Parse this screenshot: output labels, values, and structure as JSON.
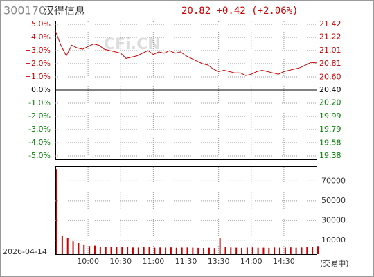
{
  "header": {
    "code": "300170",
    "name": "汉得信息",
    "quote": "20.82 +0.42 (+2.06%)",
    "date": "2026-04-14",
    "status": "(交易中)",
    "watermark": "CFi.CN"
  },
  "chart_data": [
    {
      "type": "line",
      "x": [
        0,
        5,
        10,
        15,
        20,
        25,
        30,
        35,
        40,
        45,
        50,
        55,
        60,
        65,
        70,
        75,
        80,
        85,
        90,
        95,
        100,
        105,
        110,
        115,
        120,
        125,
        130,
        135,
        140,
        145,
        150,
        155,
        160,
        165,
        170,
        175,
        180,
        185,
        190,
        195,
        200,
        205,
        210,
        215,
        220,
        225,
        230,
        235,
        240
      ],
      "series": [
        {
          "color": "#cc0000",
          "values": [
            4.5,
            3.4,
            2.6,
            3.4,
            3.2,
            3.1,
            3.3,
            3.5,
            3.4,
            3.1,
            3.0,
            2.9,
            2.8,
            2.4,
            2.5,
            2.6,
            2.8,
            3.0,
            2.7,
            2.9,
            2.8,
            3.0,
            2.8,
            2.9,
            2.6,
            2.4,
            2.2,
            2.0,
            1.9,
            1.6,
            1.4,
            1.5,
            1.4,
            1.3,
            1.3,
            1.1,
            1.2,
            1.4,
            1.5,
            1.4,
            1.3,
            1.2,
            1.4,
            1.5,
            1.6,
            1.7,
            1.9,
            2.1,
            2.06
          ]
        }
      ],
      "xlim": [
        0,
        240
      ],
      "ylim": [
        -5,
        5
      ],
      "yticks": [
        {
          "value": 5,
          "label": "+5.0%"
        },
        {
          "value": 4,
          "label": "+4.0%"
        },
        {
          "value": 3,
          "label": "+3.0%"
        },
        {
          "value": 2,
          "label": "+2.0%"
        },
        {
          "value": 1,
          "label": "+1.0%"
        },
        {
          "value": 0,
          "label": "0.0%"
        },
        {
          "value": -1,
          "label": "-1.0%"
        },
        {
          "value": -2,
          "label": "-2.0%"
        },
        {
          "value": -3,
          "label": "-3.0%"
        },
        {
          "value": -4,
          "label": "-4.0%"
        },
        {
          "value": -5,
          "label": "-5.0%"
        }
      ],
      "y2lim": [
        19.38,
        21.42
      ],
      "y2ticks": [
        21.42,
        21.22,
        21.01,
        20.81,
        {
          "value": 20.6,
          "label": "20.60"
        },
        {
          "value": 20.4,
          "label": "20.40"
        },
        {
          "value": 20.2,
          "label": "20.20"
        },
        19.99,
        19.79,
        19.58,
        19.38
      ],
      "grid": true
    },
    {
      "type": "bar",
      "x": [
        0,
        5,
        10,
        15,
        20,
        25,
        30,
        35,
        40,
        45,
        50,
        55,
        60,
        65,
        70,
        75,
        80,
        85,
        90,
        95,
        100,
        105,
        110,
        115,
        120,
        125,
        130,
        135,
        140,
        145,
        150,
        155,
        160,
        165,
        170,
        175,
        180,
        185,
        190,
        195,
        200,
        205,
        210,
        215,
        220,
        225,
        230,
        235,
        240
      ],
      "values": [
        82000,
        14000,
        12000,
        9000,
        7000,
        5000,
        4000,
        4500,
        3000,
        3500,
        3000,
        2800,
        3200,
        3000,
        2600,
        2500,
        2800,
        3000,
        2400,
        2600,
        2500,
        2700,
        2300,
        2500,
        2600,
        2400,
        2200,
        2100,
        2300,
        2000,
        12000,
        3000,
        2600,
        2400,
        2200,
        2500,
        2700,
        2300,
        2400,
        2200,
        2600,
        2400,
        2500,
        2700,
        2300,
        2600,
        2800,
        3000,
        4000
      ],
      "color": "#cc0000",
      "xlim": [
        0,
        240
      ],
      "ylim": [
        0,
        85000
      ],
      "yticks": [
        10000,
        30000,
        50000,
        70000
      ],
      "xticks": [
        {
          "value": 30,
          "label": "10:00"
        },
        {
          "value": 60,
          "label": "10:30"
        },
        {
          "value": 90,
          "label": "11:00"
        },
        {
          "value": 120,
          "label": "11:30"
        },
        {
          "value": 150,
          "label": "13:30"
        },
        {
          "value": 180,
          "label": "14:00"
        },
        {
          "value": 210,
          "label": "14:30"
        }
      ],
      "grid": true
    }
  ]
}
